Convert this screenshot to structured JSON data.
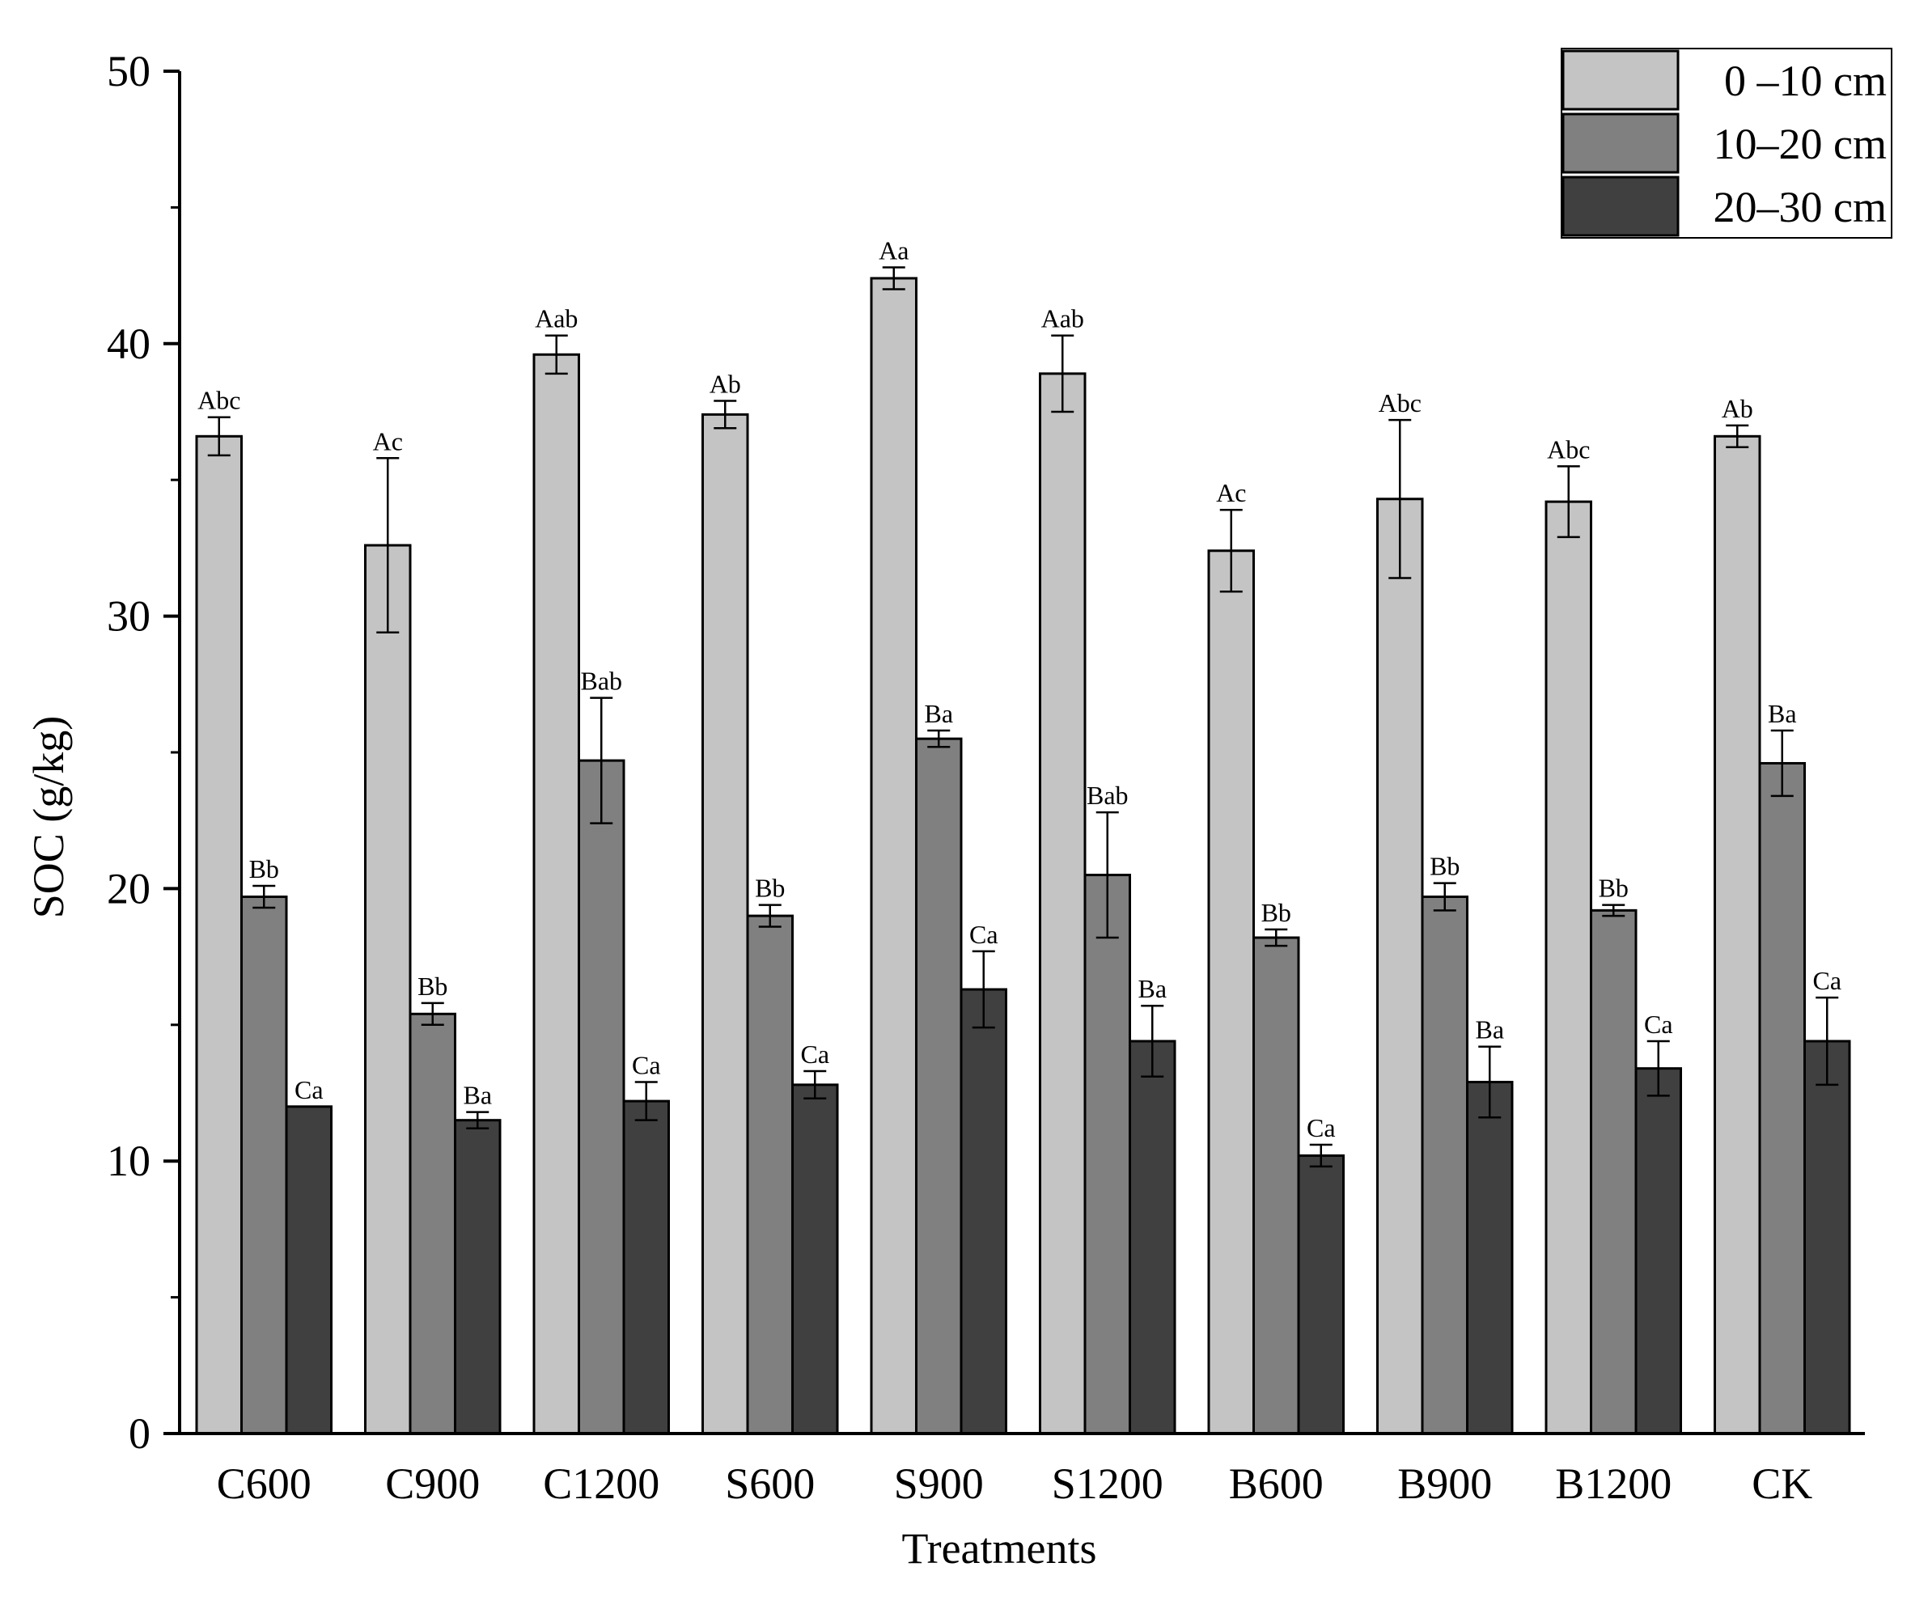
{
  "chart_data": {
    "type": "bar",
    "title": "",
    "xlabel": "Treatments",
    "ylabel": "SOC (g/kg)",
    "ylim": [
      0,
      50
    ],
    "yticks": [
      0,
      10,
      20,
      30,
      40,
      50
    ],
    "grid": false,
    "legend_position": "top-right",
    "categories": [
      "C600",
      "C900",
      "C1200",
      "S600",
      "S900",
      "S1200",
      "B600",
      "B900",
      "B1200",
      "CK"
    ],
    "series": [
      {
        "name": "0 –10 cm",
        "color": "#c4c4c4",
        "values": [
          36.6,
          32.6,
          39.6,
          37.4,
          42.4,
          38.9,
          32.4,
          34.3,
          34.2,
          36.6
        ],
        "errors": [
          0.7,
          3.2,
          0.7,
          0.5,
          0.4,
          1.4,
          1.5,
          2.9,
          1.3,
          0.4
        ],
        "labels": [
          "Abc",
          "Ac",
          "Aab",
          "Ab",
          "Aa",
          "Aab",
          "Ac",
          "Abc",
          "Abc",
          "Ab"
        ]
      },
      {
        "name": "10–20 cm",
        "color": "#808080",
        "values": [
          19.7,
          15.4,
          24.7,
          19.0,
          25.5,
          20.5,
          18.2,
          19.7,
          19.2,
          24.6
        ],
        "errors": [
          0.4,
          0.4,
          2.3,
          0.4,
          0.3,
          2.3,
          0.3,
          0.5,
          0.2,
          1.2
        ],
        "labels": [
          "Bb",
          "Bb",
          "Bab",
          "Bb",
          "Ba",
          "Bab",
          "Bb",
          "Bb",
          "Bb",
          "Ba"
        ]
      },
      {
        "name": "20–30 cm",
        "color": "#404040",
        "values": [
          12.0,
          11.5,
          12.2,
          12.8,
          16.3,
          14.4,
          10.2,
          12.9,
          13.4,
          14.4
        ],
        "errors": [
          0.0,
          0.3,
          0.7,
          0.5,
          1.4,
          1.3,
          0.4,
          1.3,
          1.0,
          1.6
        ],
        "labels": [
          "Ca",
          "Ba",
          "Ca",
          "Ca",
          "Ca",
          "Ba",
          "Ca",
          "Ba",
          "Ca",
          "Ca"
        ]
      }
    ]
  }
}
